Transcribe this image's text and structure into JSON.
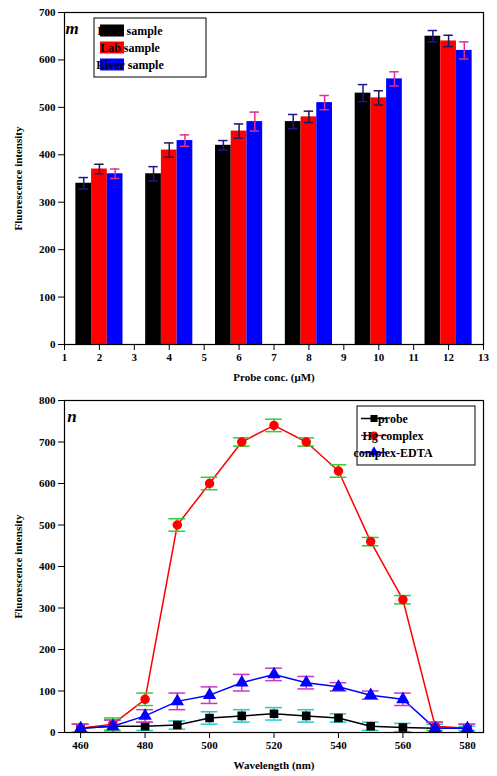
{
  "chart_data": [
    {
      "type": "bar",
      "annotations": [
        "m"
      ],
      "x_label": "Probe conc. (μM)",
      "y_label": "Fluorescence intensity",
      "x": [
        2,
        4,
        6,
        8,
        10,
        12
      ],
      "series": [
        {
          "name": "Lake sample",
          "color": "#000000",
          "values": [
            340,
            360,
            420,
            470,
            530,
            650
          ],
          "errors": [
            12,
            15,
            10,
            15,
            18,
            12
          ]
        },
        {
          "name": "Lab sample",
          "color": "#ff0000",
          "values": [
            370,
            410,
            450,
            480,
            520,
            640
          ],
          "errors": [
            10,
            15,
            15,
            12,
            15,
            12
          ]
        },
        {
          "name": "River sample",
          "color": "#0000ff",
          "values": [
            360,
            430,
            470,
            510,
            560,
            620
          ],
          "errors": [
            10,
            12,
            20,
            15,
            15,
            18
          ]
        }
      ],
      "xlim": [
        1,
        13
      ],
      "xticks": [
        1,
        2,
        3,
        4,
        5,
        6,
        7,
        8,
        9,
        10,
        11,
        12,
        13
      ],
      "ylim": [
        0,
        700
      ],
      "yticks": [
        0,
        100,
        200,
        300,
        400,
        500,
        600,
        700
      ],
      "legend": "top-left"
    },
    {
      "type": "line",
      "annotations": [
        "n"
      ],
      "x_label": "Wavelength (nm)",
      "y_label": "Fluorescence intensity",
      "x": [
        460,
        470,
        480,
        490,
        500,
        510,
        520,
        530,
        540,
        550,
        560,
        570,
        580
      ],
      "series": [
        {
          "name": "probe",
          "color": "#000000",
          "marker": "square",
          "values": [
            10,
            15,
            15,
            18,
            35,
            40,
            45,
            40,
            35,
            15,
            12,
            10,
            10
          ],
          "errors": [
            10,
            15,
            10,
            10,
            15,
            15,
            15,
            15,
            10,
            10,
            10,
            10,
            5
          ]
        },
        {
          "name": "Hg complex",
          "color": "#ff0000",
          "marker": "circle",
          "values": [
            10,
            20,
            80,
            500,
            600,
            700,
            740,
            700,
            630,
            460,
            320,
            15,
            10
          ],
          "errors": [
            10,
            15,
            15,
            15,
            15,
            10,
            15,
            10,
            15,
            10,
            10,
            10,
            10
          ]
        },
        {
          "name": "complex-EDTA",
          "color": "#0000ff",
          "marker": "triangle",
          "values": [
            10,
            15,
            40,
            75,
            90,
            120,
            140,
            120,
            110,
            90,
            80,
            10,
            10
          ],
          "errors": [
            10,
            15,
            15,
            20,
            20,
            20,
            15,
            15,
            10,
            10,
            15,
            15,
            10
          ]
        }
      ],
      "xlim": [
        455,
        585
      ],
      "xticks": [
        460,
        480,
        500,
        520,
        540,
        560,
        580
      ],
      "ylim": [
        0,
        800
      ],
      "yticks": [
        0,
        100,
        200,
        300,
        400,
        500,
        600,
        700,
        800
      ],
      "legend": "top-right"
    }
  ]
}
